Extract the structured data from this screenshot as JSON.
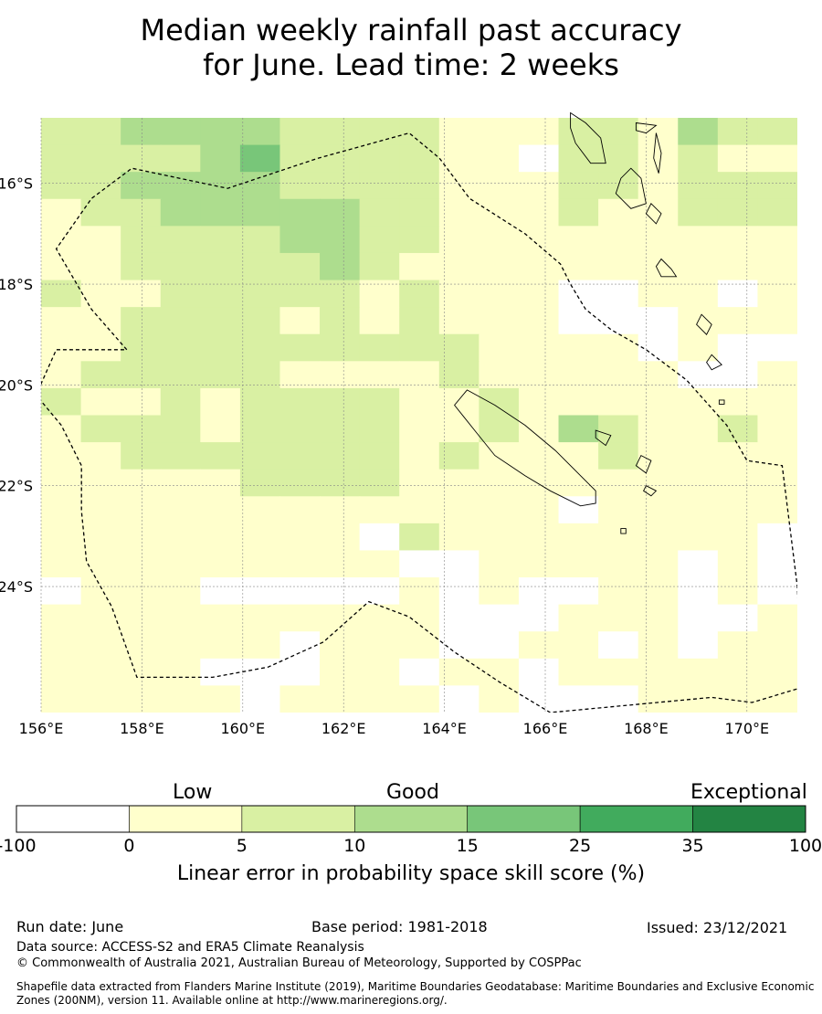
{
  "title_line1": "Median weekly rainfall past accuracy",
  "title_line2": "for June. Lead time: 2 weeks",
  "map": {
    "x_ticks": [
      "156°E",
      "158°E",
      "160°E",
      "162°E",
      "164°E",
      "166°E",
      "168°E",
      "170°E"
    ],
    "y_ticks": [
      "16°S",
      "18°S",
      "20°S",
      "22°S",
      "24°S"
    ],
    "lon_range": [
      156,
      171
    ],
    "lat_range": [
      -26.5,
      -14.7
    ],
    "grid": true,
    "boundary_style": "dashed",
    "skill_grid_rows": [
      "2233332222111221322",
      "2222342222110221211",
      "2233332222111221222",
      "1223333322111211222",
      "1122223322111111111",
      "1122222321111111111",
      "2112222212111001101",
      "1122221212111000111",
      "1122222222211110100",
      "1222221111211111001",
      "2112122221121111111",
      "1222122221121321121",
      "1122222221211121111",
      "1111122221111111111",
      "1111111111111011111",
      "1111111102111111110",
      "1111111110011111010",
      "0111000001010011010",
      "1111111111000111001",
      "1111110111001101011",
      "1111000110110111111",
      "1111101111010001111"
    ]
  },
  "colorbar": {
    "category_labels": [
      "Low",
      "Good",
      "Exceptional"
    ],
    "tick_labels": [
      "-100",
      "0",
      "5",
      "10",
      "15",
      "25",
      "35",
      "100"
    ],
    "colors": [
      "#ffffff",
      "#ffffcc",
      "#d9f0a3",
      "#addd8e",
      "#78c679",
      "#41ab5d",
      "#238443"
    ],
    "label": "Linear error in probability space skill score (%)"
  },
  "footer": {
    "run_date": "Run date: June",
    "base_period": "Base period: 1981-2018",
    "issued": "Issued: 23/12/2021",
    "data_source": "Data source: ACCESS-S2 and ERA5 Climate Reanalysis",
    "copyright": "© Commonwealth of Australia 2021, Australian Bureau of Meteorology, Supported by COSPPac",
    "shapefile_line1": "Shapefile data extracted from Flanders Marine Institute (2019), Maritime Boundaries Geodatabase: Maritime Boundaries and Exclusive Economic",
    "shapefile_line2": "Zones (200NM), version 11. Available online at http://www.marineregions.org/."
  }
}
